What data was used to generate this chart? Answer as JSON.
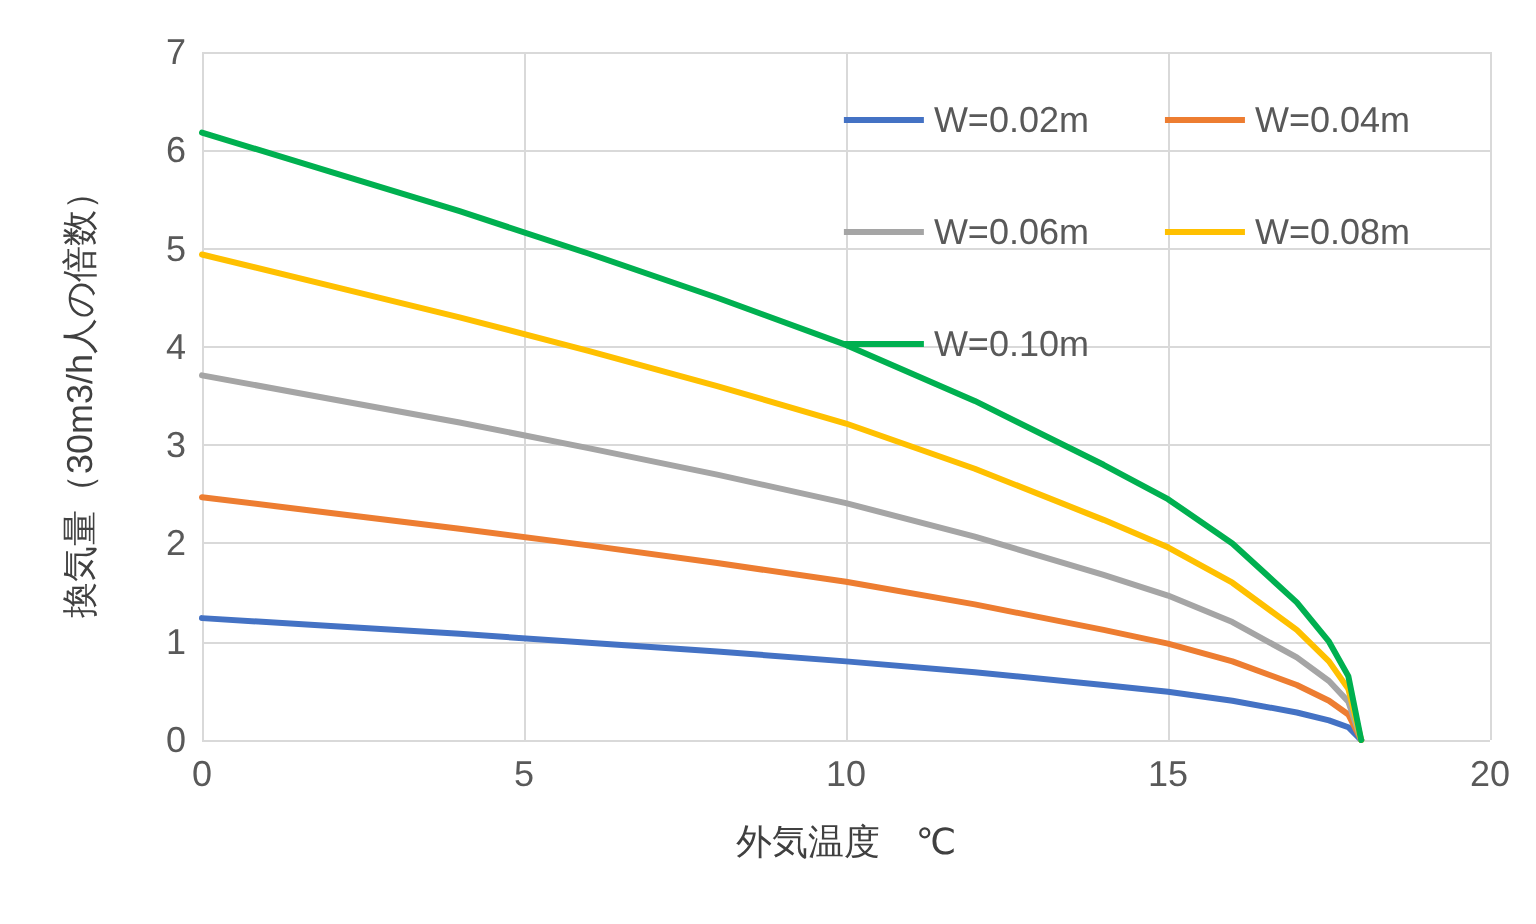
{
  "chart_data": {
    "type": "line",
    "xlabel": "外気温度　℃",
    "ylabel": "換気量（30m3/h人の倍数）",
    "x": [
      0,
      2,
      4,
      6,
      8,
      10,
      12,
      14,
      15,
      16,
      17,
      17.5,
      17.8,
      18
    ],
    "series": [
      {
        "name": "W=0.02m",
        "color": "#4472c4",
        "values": [
          1.24,
          1.16,
          1.08,
          0.99,
          0.9,
          0.8,
          0.69,
          0.56,
          0.49,
          0.4,
          0.28,
          0.2,
          0.13,
          0
        ]
      },
      {
        "name": "W=0.04m",
        "color": "#ed7d31",
        "values": [
          2.47,
          2.31,
          2.15,
          1.98,
          1.8,
          1.61,
          1.38,
          1.12,
          0.98,
          0.8,
          0.56,
          0.4,
          0.26,
          0
        ]
      },
      {
        "name": "W=0.06m",
        "color": "#a5a5a5",
        "values": [
          3.71,
          3.47,
          3.23,
          2.97,
          2.7,
          2.41,
          2.07,
          1.68,
          1.47,
          1.2,
          0.84,
          0.6,
          0.39,
          0
        ]
      },
      {
        "name": "W=0.08m",
        "color": "#ffc000",
        "values": [
          4.94,
          4.62,
          4.3,
          3.96,
          3.6,
          3.22,
          2.76,
          2.24,
          1.96,
          1.6,
          1.12,
          0.8,
          0.52,
          0
        ]
      },
      {
        "name": "W=0.10m",
        "color": "#00b050",
        "values": [
          6.18,
          5.78,
          5.38,
          4.95,
          4.5,
          4.02,
          3.45,
          2.8,
          2.45,
          2.0,
          1.4,
          1.0,
          0.65,
          0
        ]
      }
    ],
    "xlim": [
      0,
      20
    ],
    "xticks": [
      0,
      5,
      10,
      15,
      20
    ],
    "ylim": [
      0,
      7
    ],
    "yticks": [
      0,
      1,
      2,
      3,
      4,
      5,
      6,
      7
    ],
    "grid": true,
    "legend": "top right",
    "marker": "none",
    "line_style": "solid"
  }
}
